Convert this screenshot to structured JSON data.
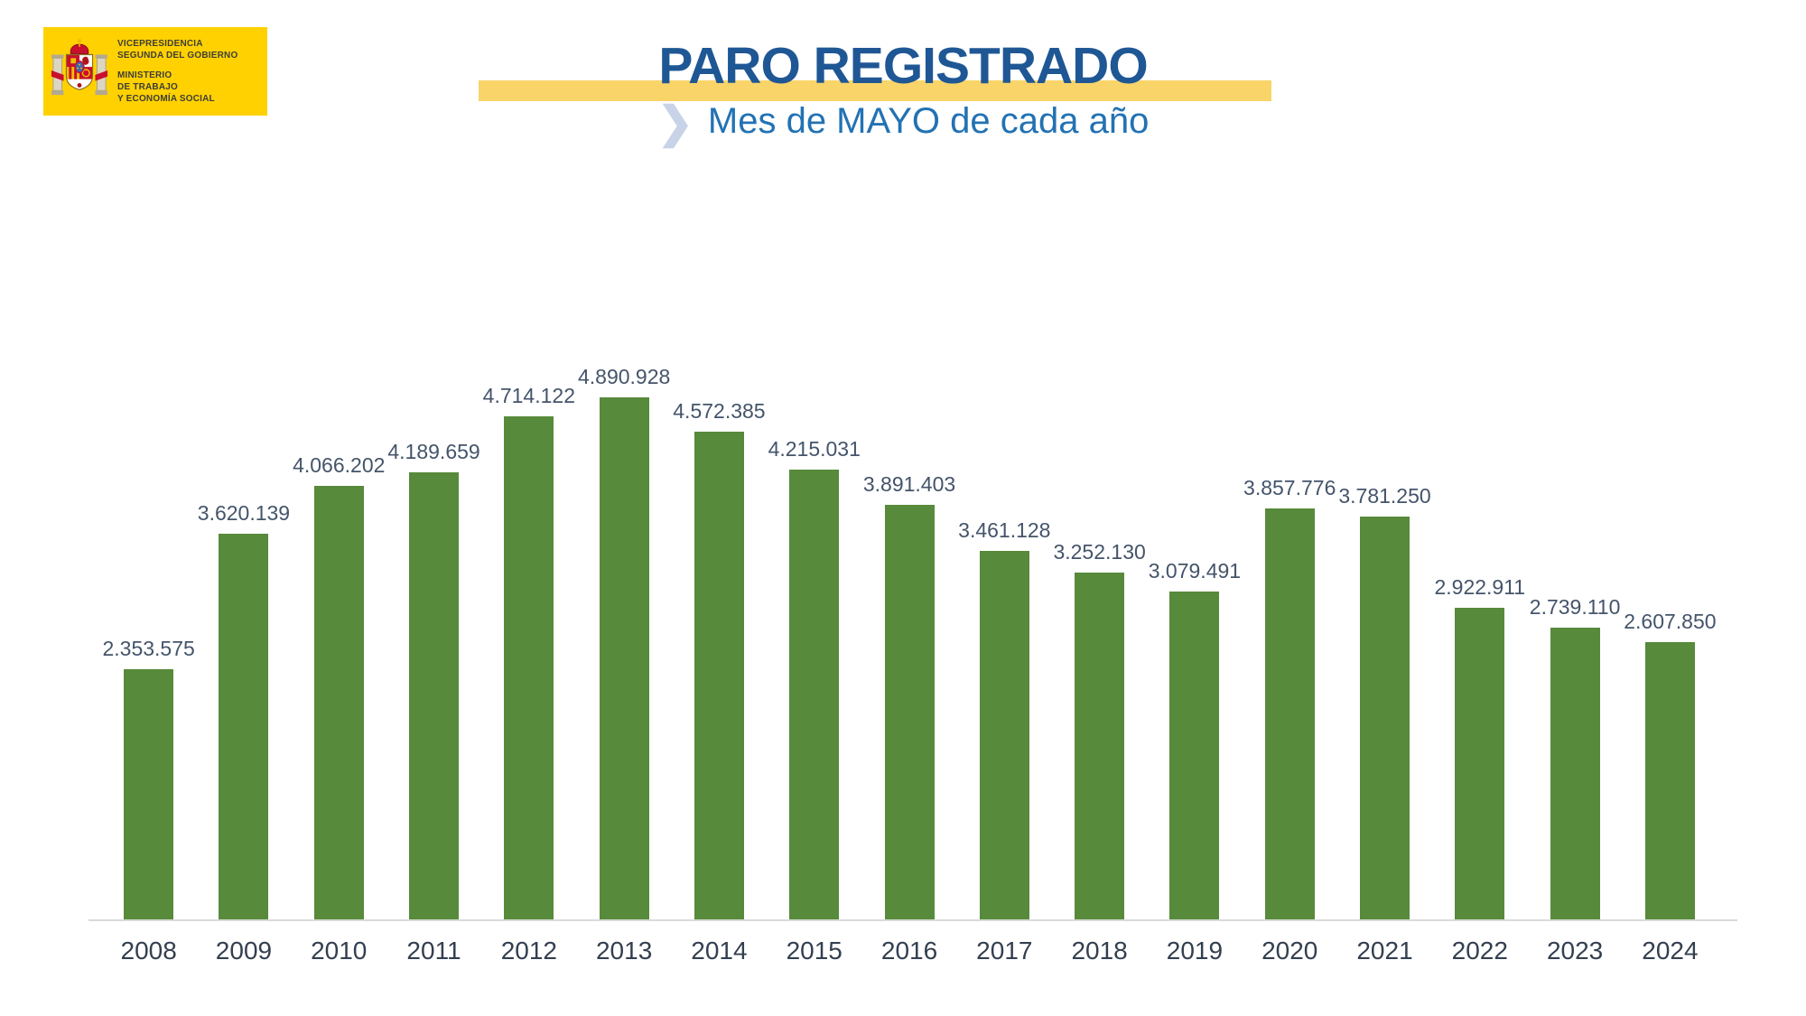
{
  "header": {
    "logo": {
      "org_top": [
        "VICEPRESIDENCIA",
        "SEGUNDA DEL GOBIERNO"
      ],
      "org_bottom": [
        "MINISTERIO",
        "DE TRABAJO",
        "Y ECONOMÍA SOCIAL"
      ],
      "background_color": "#FFD100"
    },
    "title": "PARO REGISTRADO",
    "subtitle": "Mes de MAYO de cada año",
    "title_color": "#1F5795",
    "subtitle_color": "#2272B4",
    "band_color": "#F8D469",
    "chevron_icon": "❯"
  },
  "chart_data": {
    "type": "bar",
    "title": "PARO REGISTRADO",
    "subtitle": "Mes de MAYO de cada año",
    "categories": [
      "2008",
      "2009",
      "2010",
      "2011",
      "2012",
      "2013",
      "2014",
      "2015",
      "2016",
      "2017",
      "2018",
      "2019",
      "2020",
      "2021",
      "2022",
      "2023",
      "2024"
    ],
    "values": [
      2353575,
      3620139,
      4066202,
      4189659,
      4714122,
      4890928,
      4572385,
      4215031,
      3891403,
      3461128,
      3252130,
      3079491,
      3857776,
      3781250,
      2922911,
      2739110,
      2607850
    ],
    "value_labels": [
      "2.353.575",
      "3.620.139",
      "4.066.202",
      "4.189.659",
      "4.714.122",
      "4.890.928",
      "4.572.385",
      "4.215.031",
      "3.891.403",
      "3.461.128",
      "3.252.130",
      "3.079.491",
      "3.857.776",
      "3.781.250",
      "2.922.911",
      "2.739.110",
      "2.607.850"
    ],
    "xlabel": "",
    "ylabel": "",
    "ylim": [
      0,
      4890928
    ],
    "grid": false,
    "legend": false,
    "data_labels": true,
    "bar_color": "#578A3A",
    "value_label_color": "#44546A",
    "axis_label_color": "#333F50",
    "axis_line_color": "#D9D9D9"
  }
}
